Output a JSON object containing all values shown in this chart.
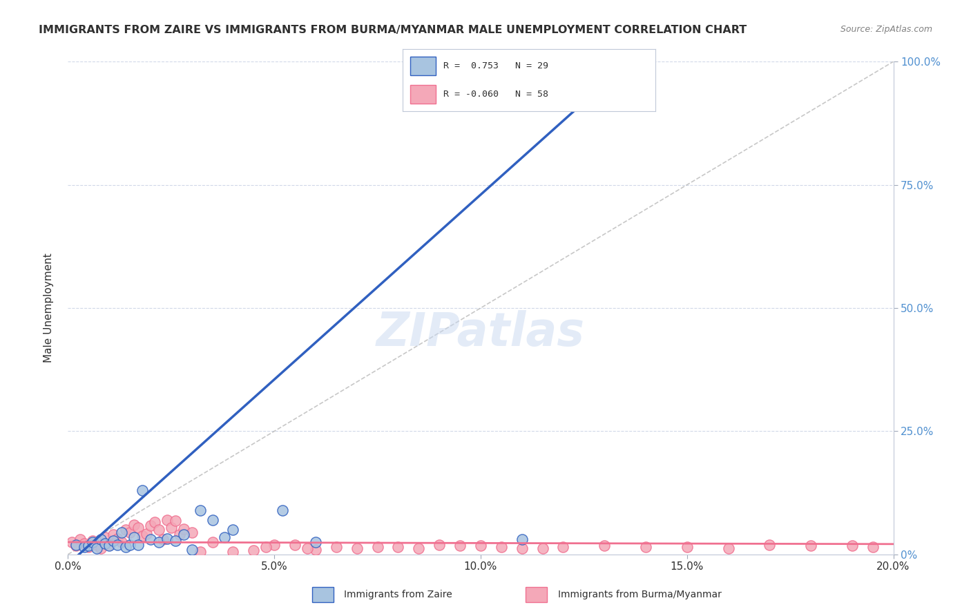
{
  "title": "IMMIGRANTS FROM ZAIRE VS IMMIGRANTS FROM BURMA/MYANMAR MALE UNEMPLOYMENT CORRELATION CHART",
  "source": "Source: ZipAtlas.com",
  "ylabel_left": "Male Unemployment",
  "x_tick_labels": [
    "0.0%",
    "5.0%",
    "10.0%",
    "15.0%",
    "20.0%"
  ],
  "x_tick_positions": [
    0.0,
    5.0,
    10.0,
    15.0,
    20.0
  ],
  "xlim": [
    0.0,
    20.0
  ],
  "ylim": [
    0.0,
    100.0
  ],
  "legend_label1": "Immigrants from Zaire",
  "legend_label2": "Immigrants from Burma/Myanmar",
  "zaire_color": "#a8c4e0",
  "burma_color": "#f4a8b8",
  "zaire_line_color": "#3060c0",
  "burma_line_color": "#f07090",
  "diagonal_color": "#b0b0b0",
  "watermark_color": "#c8d8f0",
  "background_color": "#ffffff",
  "grid_color": "#d0d8e8",
  "title_color": "#303030",
  "source_color": "#808080",
  "right_axis_color": "#5090d0",
  "zaire_points": [
    [
      0.2,
      2.0
    ],
    [
      0.4,
      1.5
    ],
    [
      0.5,
      1.8
    ],
    [
      0.6,
      2.5
    ],
    [
      0.7,
      1.2
    ],
    [
      0.8,
      3.0
    ],
    [
      0.9,
      2.2
    ],
    [
      1.0,
      1.8
    ],
    [
      1.1,
      2.8
    ],
    [
      1.2,
      2.0
    ],
    [
      1.3,
      4.5
    ],
    [
      1.4,
      1.5
    ],
    [
      1.5,
      2.0
    ],
    [
      1.6,
      3.5
    ],
    [
      1.7,
      2.0
    ],
    [
      1.8,
      13.0
    ],
    [
      2.0,
      3.0
    ],
    [
      2.2,
      2.5
    ],
    [
      2.4,
      3.2
    ],
    [
      2.6,
      2.8
    ],
    [
      2.8,
      4.0
    ],
    [
      3.0,
      1.0
    ],
    [
      3.2,
      9.0
    ],
    [
      3.5,
      7.0
    ],
    [
      3.8,
      3.5
    ],
    [
      4.0,
      5.0
    ],
    [
      5.2,
      9.0
    ],
    [
      6.0,
      2.5
    ],
    [
      11.0,
      3.0
    ]
  ],
  "burma_points": [
    [
      0.1,
      2.5
    ],
    [
      0.2,
      1.8
    ],
    [
      0.3,
      3.0
    ],
    [
      0.4,
      2.2
    ],
    [
      0.5,
      1.5
    ],
    [
      0.6,
      2.8
    ],
    [
      0.7,
      2.0
    ],
    [
      0.8,
      1.2
    ],
    [
      0.9,
      3.5
    ],
    [
      1.0,
      2.0
    ],
    [
      1.1,
      4.0
    ],
    [
      1.2,
      3.2
    ],
    [
      1.3,
      2.5
    ],
    [
      1.4,
      5.0
    ],
    [
      1.5,
      4.5
    ],
    [
      1.6,
      6.0
    ],
    [
      1.7,
      5.5
    ],
    [
      1.8,
      3.8
    ],
    [
      1.9,
      4.2
    ],
    [
      2.0,
      5.8
    ],
    [
      2.1,
      6.5
    ],
    [
      2.2,
      5.0
    ],
    [
      2.3,
      3.0
    ],
    [
      2.4,
      7.0
    ],
    [
      2.5,
      5.5
    ],
    [
      2.6,
      6.8
    ],
    [
      2.7,
      4.0
    ],
    [
      2.8,
      5.2
    ],
    [
      3.0,
      4.5
    ],
    [
      3.2,
      0.5
    ],
    [
      3.5,
      2.5
    ],
    [
      4.0,
      0.5
    ],
    [
      5.0,
      2.0
    ],
    [
      5.5,
      2.0
    ],
    [
      6.5,
      1.5
    ],
    [
      7.0,
      1.2
    ],
    [
      8.0,
      1.5
    ],
    [
      9.0,
      2.0
    ],
    [
      10.0,
      1.8
    ],
    [
      11.0,
      1.2
    ],
    [
      12.0,
      1.5
    ],
    [
      13.0,
      1.8
    ],
    [
      14.0,
      1.5
    ],
    [
      16.0,
      1.2
    ],
    [
      17.0,
      2.0
    ],
    [
      18.0,
      1.8
    ],
    [
      6.0,
      1.0
    ],
    [
      4.5,
      0.8
    ],
    [
      4.8,
      1.5
    ],
    [
      5.8,
      1.2
    ],
    [
      7.5,
      1.5
    ],
    [
      8.5,
      1.2
    ],
    [
      9.5,
      1.8
    ],
    [
      10.5,
      1.5
    ],
    [
      11.5,
      1.2
    ],
    [
      15.0,
      1.5
    ],
    [
      19.0,
      1.8
    ],
    [
      19.5,
      1.5
    ]
  ],
  "zaire_regression": {
    "slope": 7.5,
    "intercept": -2.0
  },
  "burma_regression": {
    "slope": -0.02,
    "intercept": 2.5
  }
}
